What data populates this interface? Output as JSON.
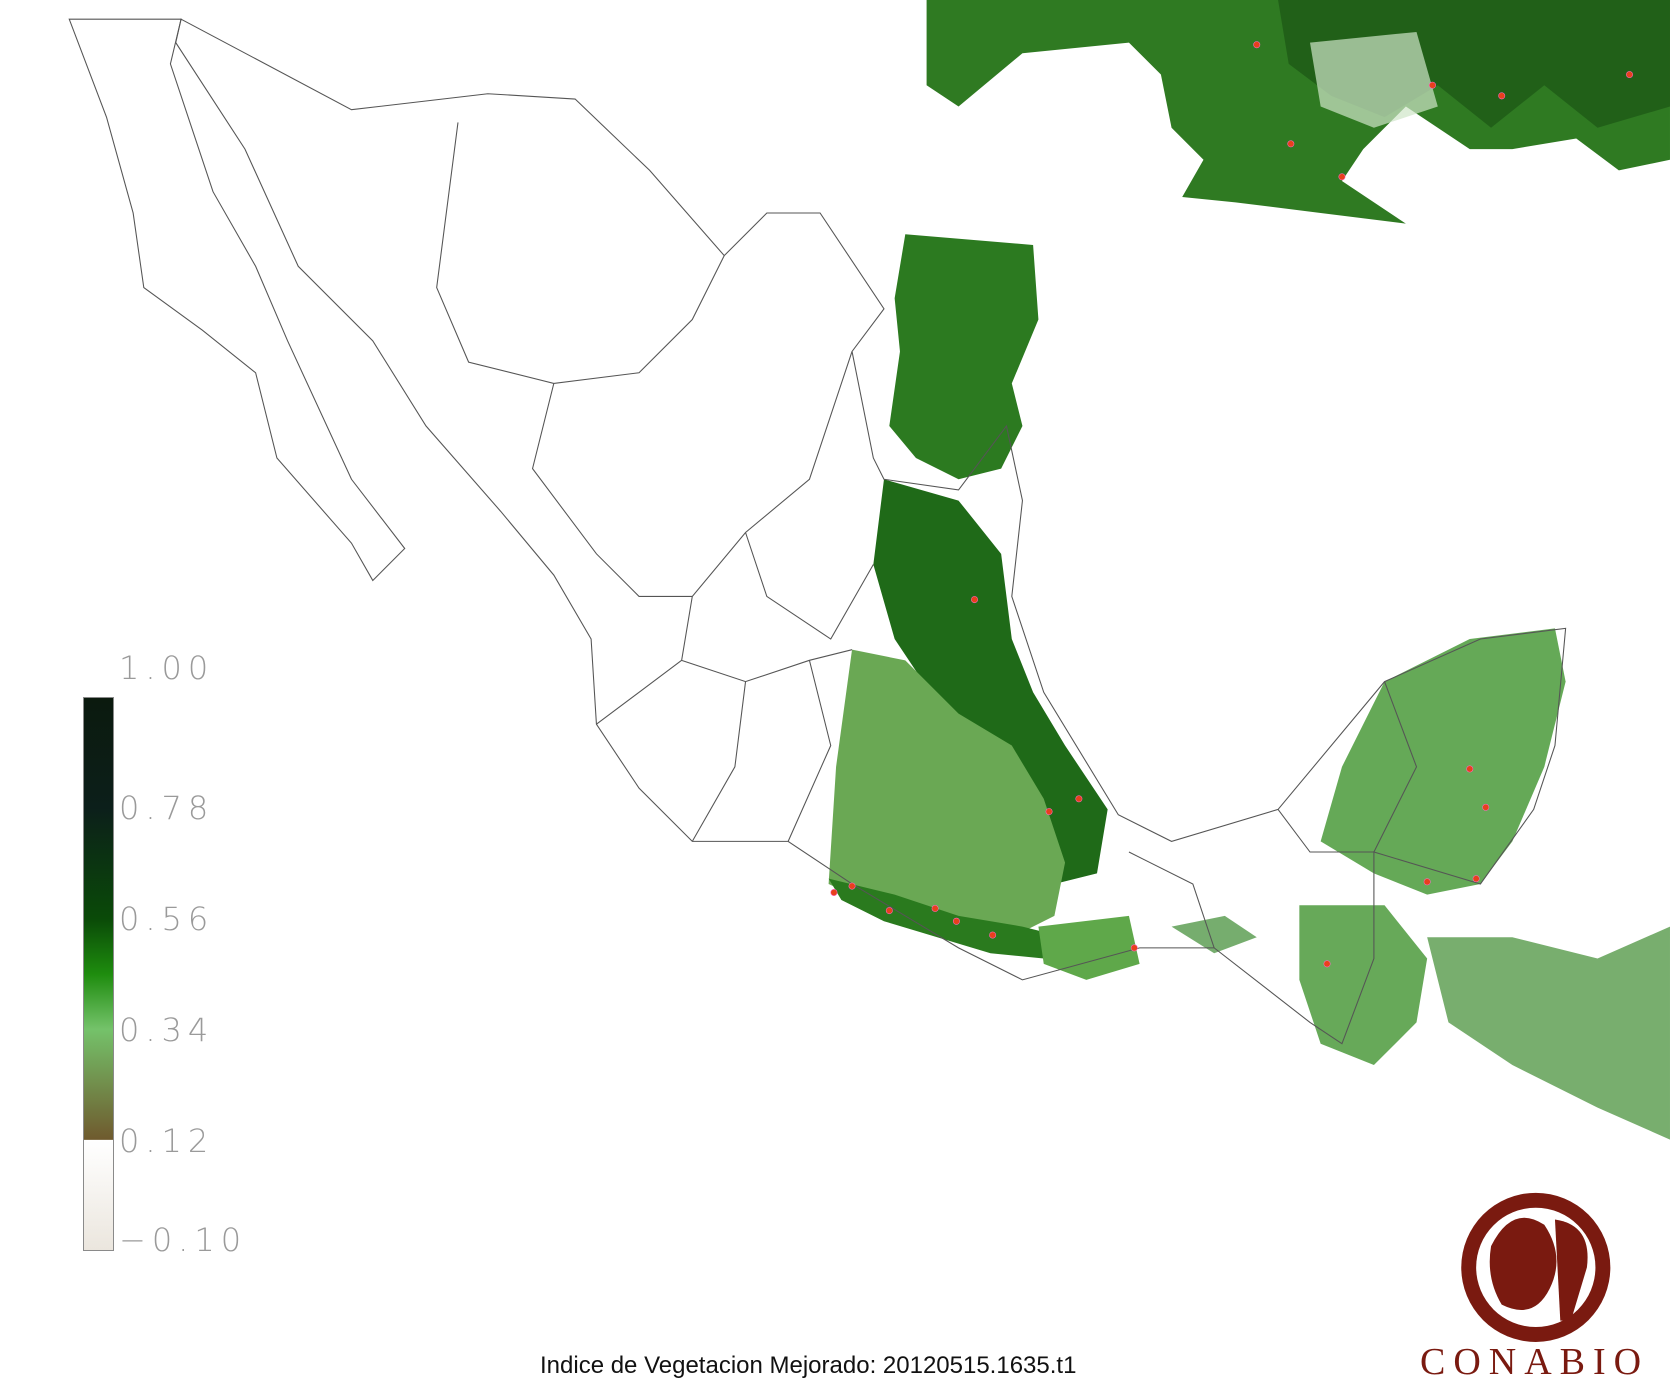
{
  "caption": "Indice de Vegetacion Mejorado: 20120515.1635.t1",
  "logo": {
    "text": "CONABIO",
    "color": "#7a1a10"
  },
  "legend": {
    "ticks": [
      "1.00",
      "0.78",
      "0.56",
      "0.34",
      "0.12",
      "−0.10"
    ],
    "range": [
      -0.1,
      1.0
    ],
    "colors": [
      {
        "value": 1.0,
        "color": "#0b1a0e"
      },
      {
        "value": 0.78,
        "color": "#0c1f1a"
      },
      {
        "value": 0.56,
        "color": "#0a4a08"
      },
      {
        "value": 0.45,
        "color": "#1e8c0e"
      },
      {
        "value": 0.34,
        "color": "#74c26a"
      },
      {
        "value": 0.12,
        "color": "#6f5a2e"
      },
      {
        "value": 0.119,
        "color": "#ffffff"
      },
      {
        "value": -0.1,
        "color": "#ebe6de"
      }
    ]
  },
  "colors": {
    "outline": "#555555",
    "fire_point": "#e8401c"
  }
}
